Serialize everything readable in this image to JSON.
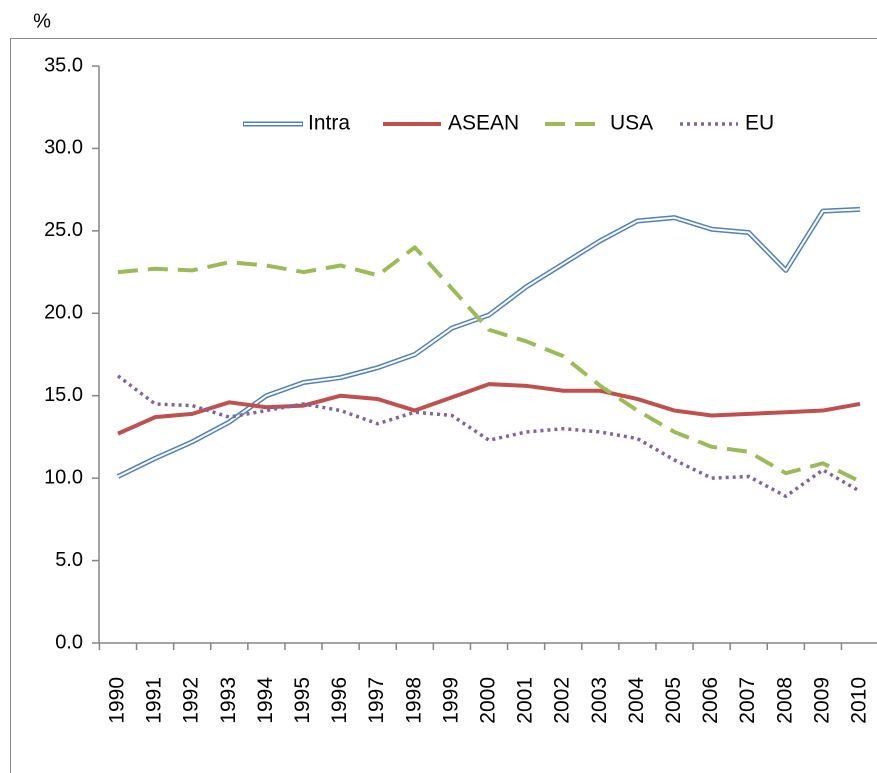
{
  "chart_data": {
    "type": "line",
    "y_label": "%",
    "categories": [
      "1990",
      "1991",
      "1992",
      "1993",
      "1994",
      "1995",
      "1996",
      "1997",
      "1998",
      "1999",
      "2000",
      "2001",
      "2002",
      "2003",
      "2004",
      "2005",
      "2006",
      "2007",
      "2008",
      "2009",
      "2010"
    ],
    "series": [
      {
        "name": "Intra",
        "color": "#4f81bd",
        "style": "double",
        "values": [
          10.1,
          11.2,
          12.2,
          13.4,
          15.0,
          15.8,
          16.1,
          16.7,
          17.5,
          19.1,
          19.9,
          21.6,
          23.0,
          24.4,
          25.6,
          25.8,
          25.1,
          24.9,
          22.6,
          26.2,
          26.3
        ]
      },
      {
        "name": "ASEAN",
        "color": "#c0504d",
        "style": "solid",
        "values": [
          12.7,
          13.7,
          13.9,
          14.6,
          14.3,
          14.4,
          15.0,
          14.8,
          14.1,
          14.9,
          15.7,
          15.6,
          15.3,
          15.3,
          14.8,
          14.1,
          13.8,
          13.9,
          14.0,
          14.1,
          14.5
        ]
      },
      {
        "name": "USA",
        "color": "#9bbb59",
        "style": "dashed",
        "values": [
          22.5,
          22.7,
          22.6,
          23.1,
          22.9,
          22.5,
          22.9,
          22.3,
          24.0,
          21.5,
          19.0,
          18.3,
          17.4,
          15.6,
          14.1,
          12.8,
          11.9,
          11.6,
          10.3,
          10.9,
          9.8
        ]
      },
      {
        "name": "EU",
        "color": "#8064a2",
        "style": "dotted",
        "values": [
          16.2,
          14.5,
          14.4,
          13.7,
          14.1,
          14.5,
          14.1,
          13.3,
          14.0,
          13.8,
          12.3,
          12.8,
          13.0,
          12.8,
          12.4,
          11.1,
          10.0,
          10.1,
          8.9,
          10.5,
          9.2
        ]
      }
    ],
    "ylim": [
      0,
      35
    ],
    "yticks": [
      {
        "value": 0,
        "label": "0.0"
      },
      {
        "value": 5,
        "label": "5.0"
      },
      {
        "value": 10,
        "label": "10.0"
      },
      {
        "value": 15,
        "label": "15.0"
      },
      {
        "value": 20,
        "label": "20.0"
      },
      {
        "value": 25,
        "label": "25.0"
      },
      {
        "value": 30,
        "label": "30.0"
      },
      {
        "value": 35,
        "label": "35.0"
      }
    ],
    "legend": "top",
    "grid": false
  }
}
